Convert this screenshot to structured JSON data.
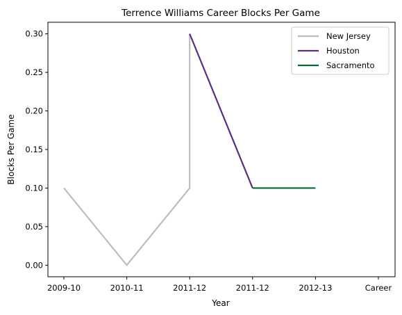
{
  "chart_data": {
    "type": "line",
    "title": "Terrence Williams Career Blocks Per Game",
    "xlabel": "Year",
    "ylabel": "Blocks Per Game",
    "categories": [
      "2009-10",
      "2010-11",
      "2011-12",
      "2011-12",
      "2012-13",
      "Career"
    ],
    "ylim": [
      -0.015,
      0.315
    ],
    "yticks": [
      0.0,
      0.05,
      0.1,
      0.15,
      0.2,
      0.25,
      0.3
    ],
    "ytick_labels": [
      "0.00",
      "0.05",
      "0.10",
      "0.15",
      "0.20",
      "0.25",
      "0.30"
    ],
    "grid": false,
    "legend_position": "top-right",
    "series": [
      {
        "name": "New Jersey",
        "color": "#bebebe",
        "points": [
          [
            0,
            0.1
          ],
          [
            1,
            0.0
          ],
          [
            2,
            0.1
          ],
          [
            2,
            0.3
          ]
        ]
      },
      {
        "name": "Houston",
        "color": "#5a2d81",
        "points": [
          [
            2,
            0.3
          ],
          [
            3,
            0.1
          ]
        ]
      },
      {
        "name": "Sacramento",
        "color": "#006b35",
        "points": [
          [
            3,
            0.1
          ],
          [
            4,
            0.1
          ]
        ]
      }
    ]
  }
}
